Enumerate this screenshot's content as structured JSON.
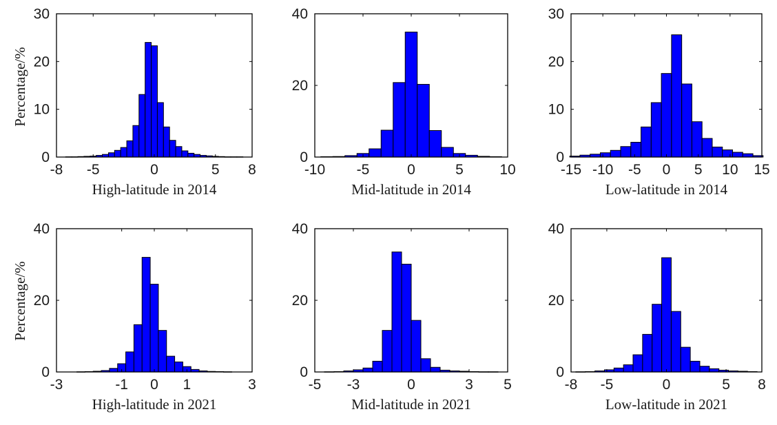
{
  "figure": {
    "ylabel": "Percentage/%"
  },
  "chart_data": [
    {
      "type": "bar",
      "title": "",
      "xlabel": "High-latitude in 2014",
      "ylabel": "Percentage/%",
      "xlim": [
        -8,
        8
      ],
      "ylim": [
        0,
        30
      ],
      "xticks": [
        -8,
        -5,
        0,
        5,
        8
      ],
      "xtick_labels": [
        "-8",
        "-5",
        "0",
        "5",
        "8"
      ],
      "yticks": [
        0,
        10,
        20,
        30
      ],
      "ytick_labels": [
        "0",
        "10",
        "20",
        "30"
      ],
      "bin_width": 0.5,
      "x": [
        -7,
        -6.5,
        -6,
        -5.5,
        -5,
        -4.5,
        -4,
        -3.5,
        -3,
        -2.5,
        -2,
        -1.5,
        -1,
        -0.5,
        0,
        0.5,
        1,
        1.5,
        2,
        2.5,
        3,
        3.5,
        4,
        4.5,
        5,
        5.5,
        6,
        6.5,
        7
      ],
      "values": [
        0.05,
        0.05,
        0.1,
        0.15,
        0.2,
        0.35,
        0.55,
        0.9,
        1.4,
        2.0,
        3.4,
        6.6,
        13.1,
        24.0,
        23.3,
        11.4,
        6.3,
        3.5,
        2.2,
        1.3,
        0.8,
        0.55,
        0.35,
        0.25,
        0.15,
        0.1,
        0.05,
        0.05,
        0.05
      ]
    },
    {
      "type": "bar",
      "title": "",
      "xlabel": "Mid-latitude in 2014",
      "ylabel": "",
      "xlim": [
        -10,
        10
      ],
      "ylim": [
        0,
        40
      ],
      "xticks": [
        -10,
        -5,
        0,
        5,
        10
      ],
      "xtick_labels": [
        "-10",
        "-5",
        "0",
        "5",
        "10"
      ],
      "yticks": [
        0,
        20,
        40
      ],
      "ytick_labels": [
        "0",
        "20",
        "40"
      ],
      "bin_width": 1.25,
      "x": [
        -8.75,
        -7.5,
        -6.25,
        -5,
        -3.75,
        -2.5,
        -1.25,
        0,
        1.25,
        2.5,
        3.75,
        5,
        6.25,
        7.5,
        8.75
      ],
      "values": [
        0.1,
        0.15,
        0.4,
        1.0,
        2.3,
        7.5,
        20.8,
        34.9,
        20.3,
        7.4,
        2.7,
        1.0,
        0.5,
        0.2,
        0.1
      ]
    },
    {
      "type": "bar",
      "title": "",
      "xlabel": "Low-latitude in 2014",
      "ylabel": "",
      "xlim": [
        -15,
        15
      ],
      "ylim": [
        0,
        30
      ],
      "xticks": [
        -15,
        -10,
        -5,
        0,
        5,
        10,
        15
      ],
      "xtick_labels": [
        "-15",
        "-10",
        "-5",
        "0",
        "5",
        "10",
        "15"
      ],
      "yticks": [
        0,
        10,
        20,
        30
      ],
      "ytick_labels": [
        "0",
        "10",
        "20",
        "30"
      ],
      "bin_width": 1.6,
      "x": [
        -14.4,
        -12.8,
        -11.2,
        -9.6,
        -8,
        -6.4,
        -4.8,
        -3.2,
        -1.6,
        0,
        1.6,
        3.2,
        4.8,
        6.4,
        8,
        9.6,
        11.2,
        12.8,
        14.4
      ],
      "values": [
        0.2,
        0.4,
        0.6,
        0.9,
        1.4,
        2.2,
        3.1,
        6.3,
        11.4,
        17.5,
        25.6,
        15.3,
        7.4,
        3.9,
        2.1,
        1.5,
        1.0,
        0.7,
        0.3
      ]
    },
    {
      "type": "bar",
      "title": "",
      "xlabel": "High-latitude in 2021",
      "ylabel": "Percentage/%",
      "xlim": [
        -3,
        3
      ],
      "ylim": [
        0,
        40
      ],
      "xticks": [
        -3,
        -1,
        0,
        1,
        3
      ],
      "xtick_labels": [
        "-3",
        "-1",
        "0",
        "1",
        "3"
      ],
      "yticks": [
        0,
        20,
        40
      ],
      "ytick_labels": [
        "0",
        "20",
        "40"
      ],
      "bin_width": 0.25,
      "x": [
        -2.25,
        -2,
        -1.75,
        -1.5,
        -1.25,
        -1,
        -0.75,
        -0.5,
        -0.25,
        0,
        0.25,
        0.5,
        0.75,
        1,
        1.25,
        1.5,
        1.75,
        2,
        2.25
      ],
      "values": [
        0.05,
        0.1,
        0.2,
        0.4,
        1.0,
        2.3,
        5.6,
        13.2,
        32.0,
        24.5,
        11.6,
        4.4,
        2.8,
        1.5,
        0.7,
        0.3,
        0.15,
        0.1,
        0.05
      ]
    },
    {
      "type": "bar",
      "title": "",
      "xlabel": "Mid-latitude in 2021",
      "ylabel": "",
      "xlim": [
        -5,
        5
      ],
      "ylim": [
        0,
        40
      ],
      "xticks": [
        -5,
        -3,
        0,
        3,
        5
      ],
      "xtick_labels": [
        "-5",
        "-3",
        "0",
        "3",
        "5"
      ],
      "yticks": [
        0,
        20,
        40
      ],
      "ytick_labels": [
        "0",
        "20",
        "40"
      ],
      "bin_width": 0.5,
      "x": [
        -4.25,
        -3.75,
        -3.25,
        -2.75,
        -2.25,
        -1.75,
        -1.25,
        -0.75,
        -0.25,
        0.25,
        0.75,
        1.25,
        1.75,
        2.25,
        2.75,
        3.25,
        3.75,
        4.25
      ],
      "values": [
        0.05,
        0.1,
        0.3,
        0.6,
        1.1,
        3.0,
        11.6,
        33.5,
        30.1,
        14.4,
        3.7,
        1.3,
        0.5,
        0.3,
        0.2,
        0.1,
        0.05,
        0.05
      ]
    },
    {
      "type": "bar",
      "title": "",
      "xlabel": "Low-latitude in 2021",
      "ylabel": "",
      "xlim": [
        -8,
        8
      ],
      "ylim": [
        0,
        40
      ],
      "xticks": [
        -8,
        -5,
        0,
        5,
        8
      ],
      "xtick_labels": [
        "-8",
        "-5",
        "0",
        "5",
        "8"
      ],
      "yticks": [
        0,
        20,
        40
      ],
      "ytick_labels": [
        "0",
        "20",
        "40"
      ],
      "bin_width": 0.8,
      "x": [
        -7.2,
        -6.4,
        -5.6,
        -4.8,
        -4,
        -3.2,
        -2.4,
        -1.6,
        -0.8,
        0,
        0.8,
        1.6,
        2.4,
        3.2,
        4,
        4.8,
        5.6,
        6.4,
        7.2
      ],
      "values": [
        0.05,
        0.1,
        0.3,
        0.6,
        1.1,
        2.0,
        4.8,
        10.5,
        18.9,
        31.9,
        16.9,
        6.9,
        3.0,
        1.6,
        0.9,
        0.5,
        0.3,
        0.2,
        0.1
      ]
    }
  ],
  "colors": {
    "bar_fill": "#0000ff",
    "bar_edge": "#000000",
    "axis": "#000000"
  }
}
